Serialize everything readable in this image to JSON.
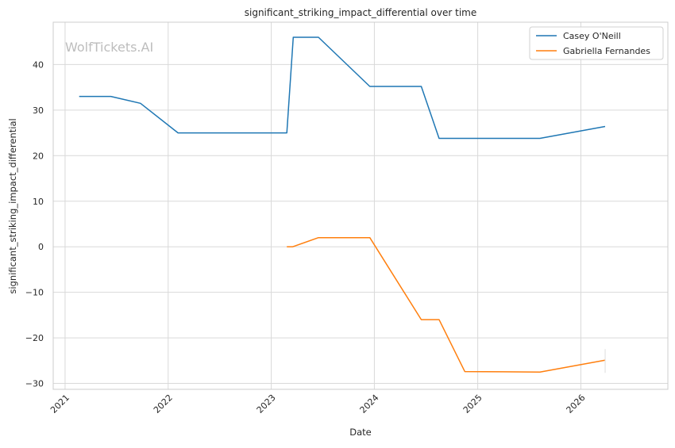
{
  "watermark": "WolfTickets.AI",
  "chart_data": {
    "type": "line",
    "title": "significant_striking_impact_differential over time",
    "xlabel": "Date",
    "ylabel": "significant_striking_impact_differential",
    "x_type": "date",
    "xlim": [
      "2020-11-20",
      "2026-11-05"
    ],
    "ylim": [
      -31.3,
      49.3
    ],
    "grid": true,
    "legend_position": "top-right",
    "x_ticks": [
      {
        "date": "2021-01-01",
        "label": "2021"
      },
      {
        "date": "2022-01-01",
        "label": "2022"
      },
      {
        "date": "2023-01-01",
        "label": "2023"
      },
      {
        "date": "2024-01-01",
        "label": "2024"
      },
      {
        "date": "2025-01-01",
        "label": "2025"
      },
      {
        "date": "2026-01-01",
        "label": "2026"
      }
    ],
    "y_ticks": [
      {
        "value": 40,
        "label": "40"
      },
      {
        "value": 30,
        "label": "30"
      },
      {
        "value": 20,
        "label": "20"
      },
      {
        "value": 10,
        "label": "10"
      },
      {
        "value": 0,
        "label": "0"
      },
      {
        "value": -10,
        "label": "−10"
      },
      {
        "value": -20,
        "label": "−20"
      },
      {
        "value": -30,
        "label": "−30"
      }
    ],
    "series": [
      {
        "name": "Casey O'Neill",
        "color": "#1f77b4",
        "points": [
          {
            "x": "2021-02-20",
            "y": 33
          },
          {
            "x": "2021-06-12",
            "y": 33
          },
          {
            "x": "2021-09-25",
            "y": 31.5
          },
          {
            "x": "2022-02-05",
            "y": 25
          },
          {
            "x": "2023-02-25",
            "y": 25
          },
          {
            "x": "2023-03-20",
            "y": 46
          },
          {
            "x": "2023-06-17",
            "y": 46
          },
          {
            "x": "2023-12-16",
            "y": 35.2
          },
          {
            "x": "2024-06-15",
            "y": 35.2
          },
          {
            "x": "2024-08-17",
            "y": 23.8
          },
          {
            "x": "2025-08-09",
            "y": 23.8
          },
          {
            "x": "2026-03-28",
            "y": 26.4
          }
        ]
      },
      {
        "name": "Gabriella Fernandes",
        "color": "#ff7f0e",
        "points": [
          {
            "x": "2023-02-25",
            "y": 0
          },
          {
            "x": "2023-03-18",
            "y": 0
          },
          {
            "x": "2023-06-17",
            "y": 2
          },
          {
            "x": "2023-12-16",
            "y": 2
          },
          {
            "x": "2024-06-15",
            "y": -16
          },
          {
            "x": "2024-08-17",
            "y": -16
          },
          {
            "x": "2024-11-16",
            "y": -27.4
          },
          {
            "x": "2025-08-09",
            "y": -27.5
          },
          {
            "x": "2026-03-28",
            "y": -24.9
          }
        ]
      }
    ]
  }
}
